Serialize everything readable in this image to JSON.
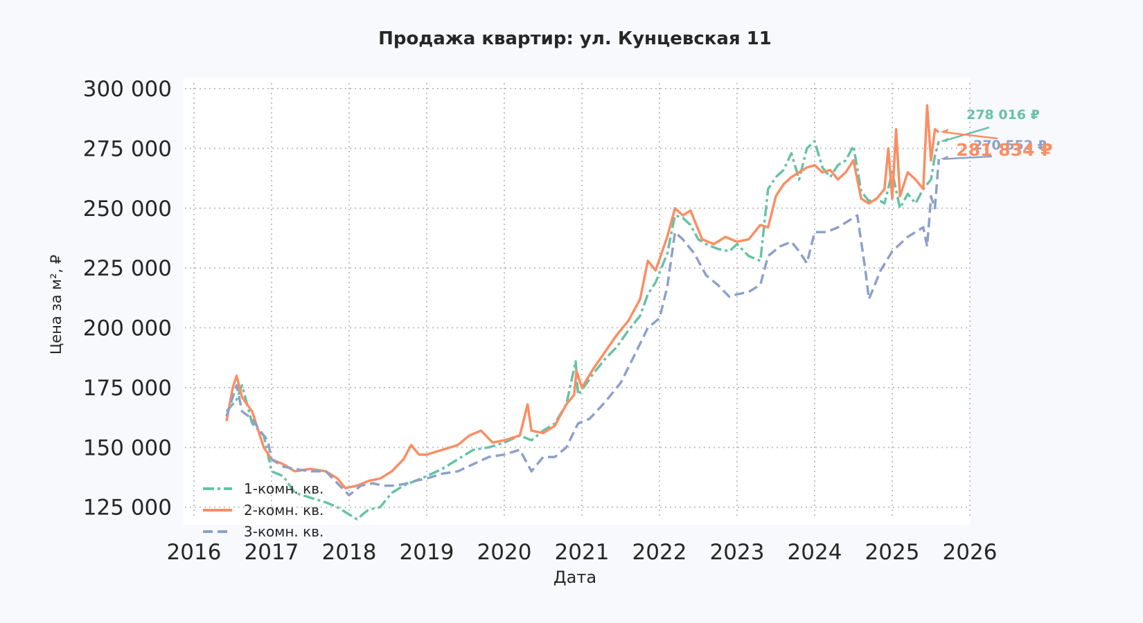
{
  "chart_data": {
    "type": "line",
    "title": "Продажа квартир: ул. Кунцевская 11",
    "xlabel": "Дата",
    "ylabel": "Цена за м², ₽",
    "xlim": [
      2016,
      2026
    ],
    "ylim": [
      112000,
      300000
    ],
    "x_ticks": [
      "2016",
      "2017",
      "2018",
      "2019",
      "2020",
      "2021",
      "2022",
      "2023",
      "2024",
      "2025",
      "2026"
    ],
    "y_ticks": [
      "125 000",
      "150 000",
      "175 000",
      "200 000",
      "225 000",
      "250 000",
      "275 000",
      "300 000"
    ],
    "y_tick_values": [
      125000,
      150000,
      175000,
      200000,
      225000,
      250000,
      275000,
      300000
    ],
    "grid": true,
    "legend_position": "lower-left",
    "colors": {
      "one_room": "#66c2a5",
      "two_room": "#fc8d62",
      "three_room": "#8da0cb",
      "plot_bg": "#ffffff",
      "grid": "#c0c0c0",
      "text": "#262626"
    },
    "series": [
      {
        "name": "1-комн. кв.",
        "style": "dashdot",
        "x": [
          2016.42,
          2016.55,
          2016.62,
          2016.75,
          2016.9,
          2017.0,
          2017.15,
          2017.3,
          2017.5,
          2017.7,
          2017.85,
          2018.0,
          2018.1,
          2018.25,
          2018.4,
          2018.55,
          2018.7,
          2018.85,
          2019.0,
          2019.2,
          2019.4,
          2019.6,
          2019.8,
          2020.0,
          2020.2,
          2020.35,
          2020.5,
          2020.65,
          2020.8,
          2020.92,
          2020.95,
          2021.0,
          2021.15,
          2021.3,
          2021.45,
          2021.6,
          2021.75,
          2021.85,
          2021.95,
          2022.1,
          2022.2,
          2022.3,
          2022.4,
          2022.5,
          2022.6,
          2022.75,
          2022.9,
          2023.0,
          2023.15,
          2023.3,
          2023.4,
          2023.5,
          2023.6,
          2023.7,
          2023.8,
          2023.9,
          2024.0,
          2024.1,
          2024.2,
          2024.3,
          2024.4,
          2024.5,
          2024.6,
          2024.7,
          2024.8,
          2024.9,
          2025.0,
          2025.1,
          2025.2,
          2025.3,
          2025.4,
          2025.5,
          2025.55,
          2025.6
        ],
        "values": [
          165000,
          170000,
          176000,
          160000,
          155000,
          140000,
          138000,
          131000,
          129000,
          127000,
          125000,
          122000,
          120000,
          124000,
          125000,
          131000,
          134000,
          136000,
          138000,
          141000,
          145000,
          149000,
          150000,
          152000,
          155000,
          153000,
          157000,
          160000,
          168000,
          186000,
          172000,
          174000,
          181000,
          187000,
          192000,
          199000,
          205000,
          214000,
          219000,
          231000,
          247000,
          246000,
          243000,
          237000,
          235000,
          233000,
          232000,
          235000,
          230000,
          228000,
          258000,
          263000,
          266000,
          273000,
          262000,
          275000,
          278000,
          267000,
          263000,
          268000,
          270000,
          276000,
          257000,
          253000,
          254000,
          252000,
          265000,
          250000,
          256000,
          252000,
          258000,
          262000,
          272000,
          278016
        ]
      },
      {
        "name": "2-комн. кв.",
        "style": "solid",
        "x": [
          2016.42,
          2016.5,
          2016.55,
          2016.62,
          2016.75,
          2016.9,
          2017.0,
          2017.15,
          2017.3,
          2017.5,
          2017.7,
          2017.85,
          2017.95,
          2018.1,
          2018.25,
          2018.4,
          2018.55,
          2018.7,
          2018.8,
          2018.9,
          2019.0,
          2019.2,
          2019.4,
          2019.55,
          2019.7,
          2019.85,
          2020.0,
          2020.2,
          2020.3,
          2020.35,
          2020.5,
          2020.65,
          2020.8,
          2020.9,
          2020.93,
          2021.0,
          2021.15,
          2021.3,
          2021.45,
          2021.6,
          2021.75,
          2021.85,
          2021.95,
          2022.1,
          2022.2,
          2022.3,
          2022.4,
          2022.55,
          2022.7,
          2022.85,
          2023.0,
          2023.15,
          2023.3,
          2023.4,
          2023.5,
          2023.6,
          2023.7,
          2023.8,
          2023.9,
          2024.0,
          2024.1,
          2024.2,
          2024.3,
          2024.4,
          2024.5,
          2024.6,
          2024.7,
          2024.8,
          2024.9,
          2024.95,
          2025.0,
          2025.05,
          2025.1,
          2025.2,
          2025.3,
          2025.4,
          2025.45,
          2025.5,
          2025.55,
          2025.6
        ],
        "values": [
          161000,
          175000,
          180000,
          171000,
          165000,
          150000,
          145000,
          143000,
          140000,
          141000,
          140000,
          137000,
          133000,
          134000,
          136000,
          137000,
          140000,
          145000,
          151000,
          147000,
          147000,
          149000,
          151000,
          155000,
          157000,
          152000,
          153000,
          155000,
          168000,
          157000,
          156000,
          159000,
          168000,
          172000,
          182000,
          175000,
          183000,
          190000,
          197000,
          203000,
          212000,
          228000,
          224000,
          238000,
          250000,
          247000,
          249000,
          237000,
          235000,
          238000,
          236000,
          237000,
          243000,
          242000,
          255000,
          260000,
          263000,
          265000,
          267000,
          268000,
          265000,
          266000,
          262000,
          265000,
          270000,
          254000,
          252000,
          254000,
          258000,
          275000,
          254000,
          283000,
          255000,
          265000,
          262000,
          258000,
          293000,
          270000,
          283000,
          281834
        ]
      },
      {
        "name": "3-комн. кв.",
        "style": "dashed",
        "x": [
          2016.42,
          2016.55,
          2016.62,
          2016.75,
          2016.85,
          2016.95,
          2017.0,
          2017.15,
          2017.3,
          2017.5,
          2017.7,
          2017.85,
          2018.0,
          2018.15,
          2018.3,
          2018.45,
          2018.6,
          2018.75,
          2018.85,
          2019.0,
          2019.2,
          2019.4,
          2019.6,
          2019.8,
          2020.0,
          2020.2,
          2020.35,
          2020.5,
          2020.65,
          2020.8,
          2020.95,
          2021.1,
          2021.3,
          2021.5,
          2021.7,
          2021.85,
          2022.0,
          2022.1,
          2022.2,
          2022.3,
          2022.45,
          2022.6,
          2022.75,
          2022.9,
          2023.0,
          2023.15,
          2023.3,
          2023.4,
          2023.55,
          2023.7,
          2023.8,
          2023.9,
          2024.0,
          2024.15,
          2024.3,
          2024.45,
          2024.55,
          2024.65,
          2024.7,
          2024.85,
          2025.0,
          2025.1,
          2025.2,
          2025.3,
          2025.4,
          2025.45,
          2025.5,
          2025.55,
          2025.6
        ],
        "values": [
          163000,
          176000,
          165000,
          162000,
          157000,
          153000,
          145000,
          142000,
          141000,
          140000,
          140000,
          135000,
          130000,
          134000,
          135000,
          134000,
          134000,
          135000,
          136000,
          137000,
          139000,
          140000,
          143000,
          146000,
          147000,
          149000,
          140000,
          146000,
          146000,
          150000,
          160000,
          162000,
          169000,
          177000,
          190000,
          200000,
          204000,
          217000,
          240000,
          237000,
          231000,
          222000,
          218000,
          213000,
          214000,
          215000,
          218000,
          230000,
          234000,
          236000,
          232000,
          227000,
          240000,
          240000,
          242000,
          245000,
          247000,
          225000,
          212000,
          224000,
          232000,
          235000,
          238000,
          240000,
          242000,
          234000,
          255000,
          250000,
          270552
        ]
      }
    ],
    "annotations": [
      {
        "series": "1-комн. кв.",
        "text": "278 016 ₽",
        "x": 2025.6,
        "y": 278016
      },
      {
        "series": "3-комн. кв.",
        "text": "270 552 ₽",
        "x": 2025.6,
        "y": 270552
      },
      {
        "series": "2-комн. кв.",
        "text": "281 834 ₽",
        "x": 2025.6,
        "y": 281834
      }
    ]
  }
}
